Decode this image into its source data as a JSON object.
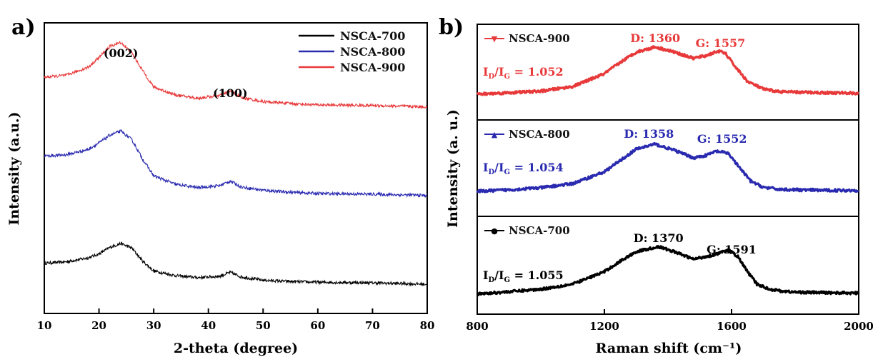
{
  "chart_data": [
    {
      "type": "line",
      "panel_label": "a)",
      "xlabel": "2-theta (degree)",
      "ylabel": "Intensity (a.u.)",
      "xlim": [
        10,
        80
      ],
      "xticks": [
        10,
        20,
        30,
        40,
        50,
        60,
        70,
        80
      ],
      "legend": {
        "placement": "top-right"
      },
      "annotations": [
        {
          "text": "(002)",
          "x": 24
        },
        {
          "text": "(100)",
          "x": 44
        }
      ],
      "series": [
        {
          "name": "NSCA-700",
          "color": "#000000",
          "offset": 0,
          "x": [
            10,
            14,
            18,
            20,
            22,
            24,
            26,
            28,
            30,
            34,
            38,
            42,
            44,
            46,
            50,
            55,
            60,
            70,
            80
          ],
          "y": [
            0.32,
            0.34,
            0.4,
            0.46,
            0.56,
            0.62,
            0.55,
            0.35,
            0.2,
            0.13,
            0.1,
            0.12,
            0.18,
            0.11,
            0.06,
            0.04,
            0.03,
            0.02,
            0.0
          ]
        },
        {
          "name": "NSCA-800",
          "color": "#2a2ab0",
          "offset": 1.35,
          "x": [
            10,
            14,
            18,
            20,
            22,
            24,
            26,
            28,
            30,
            34,
            38,
            42,
            44,
            46,
            50,
            55,
            60,
            70,
            80
          ],
          "y": [
            0.6,
            0.62,
            0.7,
            0.8,
            0.92,
            0.98,
            0.85,
            0.55,
            0.3,
            0.17,
            0.12,
            0.15,
            0.22,
            0.13,
            0.08,
            0.05,
            0.03,
            0.02,
            0.0
          ]
        },
        {
          "name": "NSCA-900",
          "color": "#e8393a",
          "offset": 2.7,
          "x": [
            10,
            14,
            18,
            20,
            22,
            24,
            26,
            28,
            30,
            34,
            38,
            42,
            44,
            46,
            50,
            55,
            60,
            70,
            80
          ],
          "y": [
            0.45,
            0.48,
            0.6,
            0.75,
            0.92,
            0.98,
            0.82,
            0.55,
            0.3,
            0.18,
            0.13,
            0.17,
            0.24,
            0.14,
            0.08,
            0.05,
            0.03,
            0.02,
            0.0
          ]
        }
      ]
    },
    {
      "type": "line",
      "panel_label": "b)",
      "xlabel": "Raman shift (cm⁻¹)",
      "ylabel": "Intensity (a. u.)",
      "xlim": [
        800,
        2000
      ],
      "xticks": [
        800,
        1200,
        1600,
        2000
      ],
      "panels": [
        {
          "name": "NSCA-900",
          "color": "#e8393a",
          "marker": "▼",
          "ratio_prefix": "I",
          "ratio_d": "D",
          "ratio_sep": "/I",
          "ratio_g": "G",
          "ratio_value": " = 1.052",
          "d_label": "D: 1360",
          "d_x": 1360,
          "g_label": "G: 1557",
          "g_x": 1565,
          "x": [
            800,
            900,
            1000,
            1100,
            1200,
            1250,
            1300,
            1360,
            1420,
            1480,
            1520,
            1557,
            1580,
            1610,
            1650,
            1700,
            1750,
            1800,
            1900,
            2000
          ],
          "y": [
            0.0,
            0.03,
            0.06,
            0.15,
            0.4,
            0.62,
            0.82,
            0.92,
            0.82,
            0.7,
            0.75,
            0.84,
            0.8,
            0.55,
            0.25,
            0.1,
            0.05,
            0.04,
            0.03,
            0.02
          ]
        },
        {
          "name": "NSCA-800",
          "color": "#2a2ab0",
          "marker": "▲",
          "ratio_prefix": "I",
          "ratio_d": "D",
          "ratio_sep": "/I",
          "ratio_g": "G",
          "ratio_value": " = 1.054",
          "d_label": "D: 1358",
          "d_x": 1340,
          "g_label": "G: 1552",
          "g_x": 1570,
          "x": [
            800,
            900,
            1000,
            1100,
            1200,
            1250,
            1300,
            1358,
            1420,
            1480,
            1520,
            1552,
            1590,
            1620,
            1660,
            1700,
            1750,
            1800,
            1900,
            2000
          ],
          "y": [
            0.0,
            0.03,
            0.07,
            0.15,
            0.38,
            0.6,
            0.82,
            0.92,
            0.8,
            0.65,
            0.7,
            0.78,
            0.74,
            0.5,
            0.2,
            0.08,
            0.04,
            0.03,
            0.02,
            0.02
          ]
        },
        {
          "name": "NSCA-700",
          "color": "#000000",
          "marker": "●",
          "ratio_prefix": "I",
          "ratio_d": "D",
          "ratio_sep": "/I",
          "ratio_g": "G",
          "ratio_value": " = 1.055",
          "d_label": "D: 1370",
          "d_x": 1370,
          "g_label": "G: 1591",
          "g_x": 1600,
          "x": [
            800,
            900,
            1000,
            1100,
            1200,
            1250,
            1300,
            1370,
            1420,
            1480,
            1540,
            1591,
            1620,
            1650,
            1680,
            1720,
            1760,
            1800,
            1900,
            2000
          ],
          "y": [
            0.0,
            0.05,
            0.1,
            0.2,
            0.45,
            0.66,
            0.85,
            0.95,
            0.85,
            0.7,
            0.78,
            0.88,
            0.75,
            0.45,
            0.2,
            0.1,
            0.06,
            0.04,
            0.03,
            0.02
          ]
        }
      ]
    }
  ]
}
